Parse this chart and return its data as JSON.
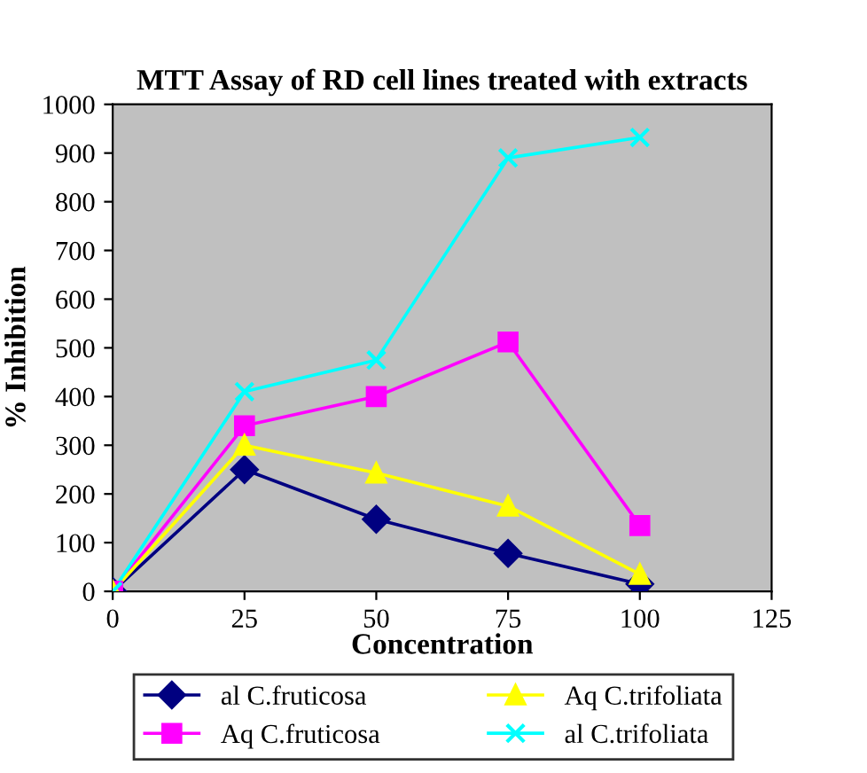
{
  "chart_data": {
    "type": "line",
    "title": "MTT Assay of RD cell lines treated with extracts",
    "xlabel": "Concentration",
    "ylabel": "% Inhibition",
    "x": [
      0,
      25,
      50,
      75,
      100
    ],
    "xlim": [
      0,
      125
    ],
    "xticks": [
      0,
      25,
      50,
      75,
      100,
      125
    ],
    "ylim": [
      0,
      1000
    ],
    "yticks": [
      0,
      100,
      200,
      300,
      400,
      500,
      600,
      700,
      800,
      900,
      1000
    ],
    "grid": false,
    "legend": "bottom",
    "series": [
      {
        "name": "al C.fruticosa",
        "color": "#000080",
        "marker": "diamond",
        "values": [
          0,
          250,
          148,
          78,
          15
        ]
      },
      {
        "name": "Aq C.fruticosa",
        "color": "#ff00ff",
        "marker": "square",
        "values": [
          0,
          340,
          400,
          512,
          135
        ]
      },
      {
        "name": "Aq C.trifoliata",
        "color": "#ffff00",
        "marker": "triangle",
        "values": [
          0,
          300,
          243,
          175,
          35
        ]
      },
      {
        "name": "al C.trifoliata",
        "color": "#00ffff",
        "marker": "cross",
        "values": [
          0,
          410,
          475,
          890,
          932
        ]
      }
    ]
  }
}
